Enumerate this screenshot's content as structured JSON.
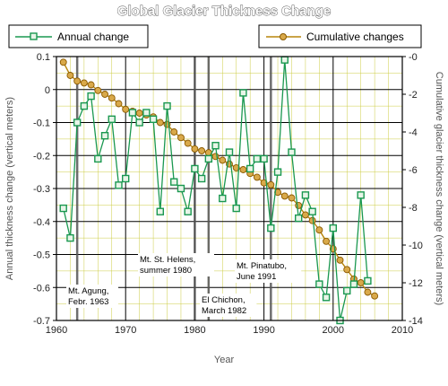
{
  "chart_data": {
    "type": "line",
    "title": "Global Glacier Thickness Change",
    "xlabel": "Year",
    "ylabel": "Annual thickness change (vertical meters)",
    "y2label": "Cumulative glacier thickness change (vertical meters)",
    "xlim": [
      1960,
      2010
    ],
    "ylim": [
      -0.7,
      0.1
    ],
    "y2lim": [
      -14,
      0
    ],
    "x_ticks": [
      "1960",
      "1970",
      "1980",
      "1990",
      "2000",
      "2010"
    ],
    "y_ticks": [
      "0.1",
      "0",
      "-0.1",
      "-0.2",
      "-0.3",
      "-0.4",
      "-0.5",
      "-0.6",
      "-0.7"
    ],
    "y2_ticks": [
      "-0",
      "-2",
      "-4",
      "-6",
      "-8",
      "-10",
      "-12",
      "-14"
    ],
    "grid": true,
    "legend": "top",
    "colors": {
      "annual": "#1a9850",
      "cumulative": "#b8860b",
      "grid": "#000000",
      "minor_grid": "#cccc44",
      "volcano": "#555555"
    },
    "series": [
      {
        "name": "Annual change",
        "axis": "left",
        "x": [
          1961,
          1962,
          1963,
          1964,
          1965,
          1966,
          1967,
          1968,
          1969,
          1970,
          1971,
          1972,
          1973,
          1974,
          1975,
          1976,
          1977,
          1978,
          1979,
          1980,
          1981,
          1982,
          1983,
          1984,
          1985,
          1986,
          1987,
          1988,
          1989,
          1990,
          1991,
          1992,
          1993,
          1994,
          1995,
          1996,
          1997,
          1998,
          1999,
          2000,
          2001,
          2002,
          2003,
          2004,
          2005
        ],
        "y": [
          -0.36,
          -0.45,
          -0.1,
          -0.05,
          -0.02,
          -0.21,
          -0.14,
          -0.09,
          -0.29,
          -0.27,
          -0.07,
          -0.1,
          -0.07,
          -0.09,
          -0.37,
          -0.05,
          -0.28,
          -0.3,
          -0.37,
          -0.24,
          -0.27,
          -0.21,
          -0.17,
          -0.33,
          -0.19,
          -0.36,
          -0.01,
          -0.24,
          -0.21,
          -0.21,
          -0.42,
          -0.25,
          0.09,
          -0.19,
          -0.39,
          -0.32,
          -0.37,
          -0.59,
          -0.63,
          -0.42,
          -0.7,
          -0.61,
          -0.59,
          -0.32,
          -0.58
        ]
      },
      {
        "name": "Cumulative changes",
        "axis": "right",
        "x": [
          1961,
          1962,
          1963,
          1964,
          1965,
          1966,
          1967,
          1968,
          1969,
          1970,
          1971,
          1972,
          1973,
          1974,
          1975,
          1976,
          1977,
          1978,
          1979,
          1980,
          1981,
          1982,
          1983,
          1984,
          1985,
          1986,
          1987,
          1988,
          1989,
          1990,
          1991,
          1992,
          1993,
          1994,
          1995,
          1996,
          1997,
          1998,
          1999,
          2000,
          2001,
          2002,
          2003,
          2004,
          2005,
          2006
        ],
        "y": [
          -0.3,
          -1.0,
          -1.3,
          -1.4,
          -1.5,
          -1.8,
          -2.0,
          -2.2,
          -2.5,
          -2.8,
          -2.9,
          -3.0,
          -3.1,
          -3.2,
          -3.5,
          -3.6,
          -4.0,
          -4.3,
          -4.6,
          -4.9,
          -5.0,
          -5.1,
          -5.3,
          -5.5,
          -5.7,
          -5.9,
          -6.0,
          -6.2,
          -6.4,
          -6.7,
          -6.8,
          -7.2,
          -7.4,
          -7.5,
          -7.9,
          -8.4,
          -8.7,
          -9.2,
          -9.8,
          -10.2,
          -10.8,
          -11.3,
          -11.8,
          -12.0,
          -12.5,
          -12.7
        ]
      }
    ],
    "annotations": [
      {
        "lines": [
          "Mt. Agung,",
          "Febr. 1963"
        ],
        "x": 1963
      },
      {
        "lines": [
          "Mt. St. Helens,",
          "summer 1980"
        ],
        "x": 1980
      },
      {
        "lines": [
          "El Chichon,",
          "March 1982"
        ],
        "x": 1982
      },
      {
        "lines": [
          "Mt. Pinatubo,",
          "June 1991"
        ],
        "x": 1991
      }
    ]
  }
}
